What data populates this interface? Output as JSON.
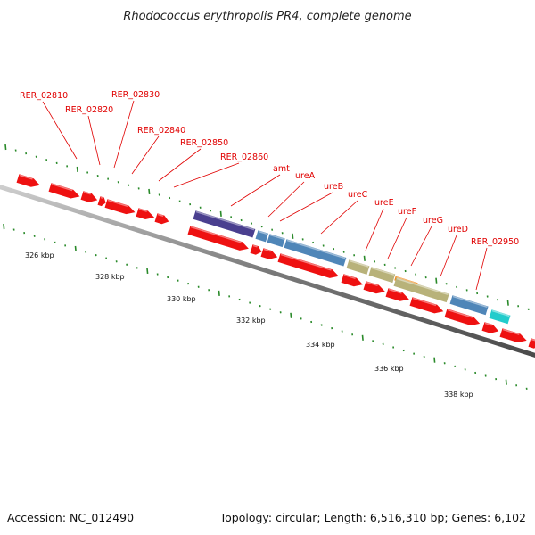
{
  "title": "Rhodococcus erythropolis PR4, complete genome",
  "footer": {
    "accession": "Accession: NC_012490",
    "summary": "Topology: circular; Length: 6,516,310 bp; Genes: 6,102"
  },
  "scale_labels": [
    "326 kbp",
    "328 kbp",
    "330 kbp",
    "332 kbp",
    "334 kbp",
    "336 kbp",
    "338 kbp"
  ],
  "gene_labels": [
    "RER_02810",
    "RER_02820",
    "RER_02830",
    "RER_02840",
    "RER_02850",
    "RER_02860",
    "amt",
    "ureA",
    "ureB",
    "ureC",
    "ureE",
    "ureF",
    "ureG",
    "ureD",
    "RER_02950"
  ],
  "colors": {
    "cds": "#ee1111",
    "amt": "#4a3f8f",
    "urease_structural": "#4f86b8",
    "urease_accessory": "#b8b27a",
    "ureF": "#f08a1a",
    "RER_02950": "#22cccc",
    "backbone": "#7a7a7a",
    "ticks": "#2a8a2a",
    "labels": "#e00000"
  }
}
